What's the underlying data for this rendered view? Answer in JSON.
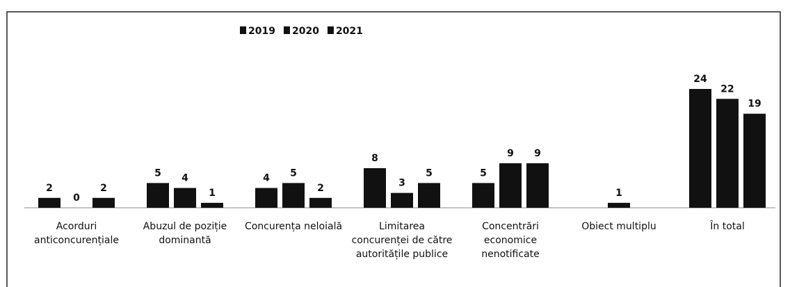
{
  "chart_data": {
    "type": "bar",
    "categories": [
      "Acorduri anticoncurențiale",
      "Abuzul de poziție dominantă",
      "Concurența neloială",
      "Limitarea concurenței de către autoritățile publice",
      "Concentrări economice nenotificate",
      "Obiect multiplu",
      "În total"
    ],
    "series": [
      {
        "name": "2019",
        "color": "#111111",
        "values": [
          2,
          5,
          4,
          8,
          5,
          null,
          24
        ]
      },
      {
        "name": "2020",
        "color": "#111111",
        "values": [
          0,
          4,
          5,
          3,
          9,
          1,
          22
        ]
      },
      {
        "name": "2021",
        "color": "#111111",
        "values": [
          2,
          1,
          2,
          5,
          9,
          null,
          19
        ]
      }
    ],
    "legend": "top"
  }
}
